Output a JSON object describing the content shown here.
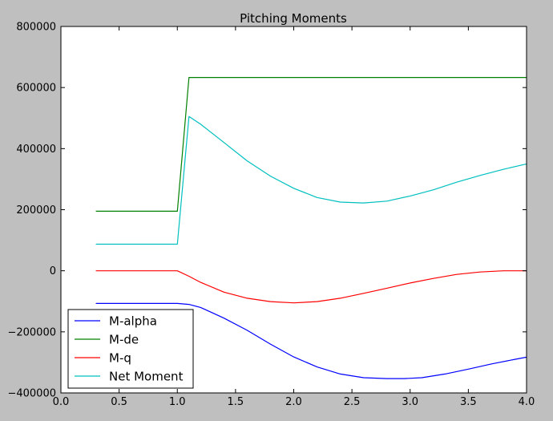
{
  "chart_data": {
    "type": "line",
    "title": "Pitching Moments",
    "xlabel": "",
    "ylabel": "",
    "xlim": [
      0.0,
      4.0
    ],
    "ylim": [
      -400000,
      800000
    ],
    "x_ticks": [
      0.0,
      0.5,
      1.0,
      1.5,
      2.0,
      2.5,
      3.0,
      3.5,
      4.0
    ],
    "x_tick_labels": [
      "0.0",
      "0.5",
      "1.0",
      "1.5",
      "2.0",
      "2.5",
      "3.0",
      "3.5",
      "4.0"
    ],
    "y_ticks": [
      -400000,
      -200000,
      0,
      200000,
      400000,
      600000,
      800000
    ],
    "y_tick_labels": [
      "−400000",
      "−200000",
      "0",
      "200000",
      "400000",
      "600000",
      "800000"
    ],
    "grid": false,
    "legend_position": "lower-left",
    "series": [
      {
        "name": "M-alpha",
        "color": "#0000ff",
        "x": [
          0.3,
          0.5,
          0.7,
          0.9,
          1.0,
          1.1,
          1.2,
          1.4,
          1.6,
          1.8,
          2.0,
          2.2,
          2.4,
          2.6,
          2.8,
          2.95,
          3.1,
          3.3,
          3.5,
          3.7,
          3.9,
          4.0
        ],
        "y": [
          -107000,
          -107000,
          -107000,
          -107000,
          -107000,
          -110000,
          -120000,
          -155000,
          -195000,
          -240000,
          -282000,
          -315000,
          -338000,
          -350000,
          -353000,
          -353000,
          -350000,
          -338000,
          -322000,
          -305000,
          -290000,
          -283000
        ]
      },
      {
        "name": "M-de",
        "color": "#008000",
        "x": [
          0.3,
          0.5,
          0.7,
          0.9,
          1.0,
          1.1,
          1.5,
          2.0,
          2.5,
          3.0,
          3.5,
          4.0
        ],
        "y": [
          195000,
          195000,
          195000,
          195000,
          195000,
          633000,
          633000,
          633000,
          633000,
          633000,
          633000,
          633000
        ]
      },
      {
        "name": "M-q",
        "color": "#ff0000",
        "x": [
          0.3,
          0.5,
          0.7,
          0.9,
          1.0,
          1.1,
          1.2,
          1.4,
          1.6,
          1.8,
          2.0,
          2.2,
          2.4,
          2.6,
          2.8,
          3.0,
          3.2,
          3.4,
          3.6,
          3.8,
          4.0
        ],
        "y": [
          0,
          0,
          0,
          0,
          0,
          -18000,
          -38000,
          -70000,
          -90000,
          -101000,
          -105000,
          -101000,
          -90000,
          -74000,
          -57000,
          -40000,
          -25000,
          -12000,
          -4000,
          0,
          0
        ]
      },
      {
        "name": "Net Moment",
        "color": "#00bfbf",
        "x": [
          0.3,
          0.5,
          0.7,
          0.9,
          1.0,
          1.1,
          1.2,
          1.4,
          1.6,
          1.8,
          2.0,
          2.2,
          2.4,
          2.6,
          2.8,
          3.0,
          3.2,
          3.4,
          3.6,
          3.8,
          4.0
        ],
        "y": [
          87000,
          87000,
          87000,
          87000,
          87000,
          505000,
          480000,
          420000,
          360000,
          310000,
          270000,
          240000,
          225000,
          222000,
          228000,
          245000,
          265000,
          290000,
          312000,
          332000,
          350000
        ]
      }
    ]
  }
}
